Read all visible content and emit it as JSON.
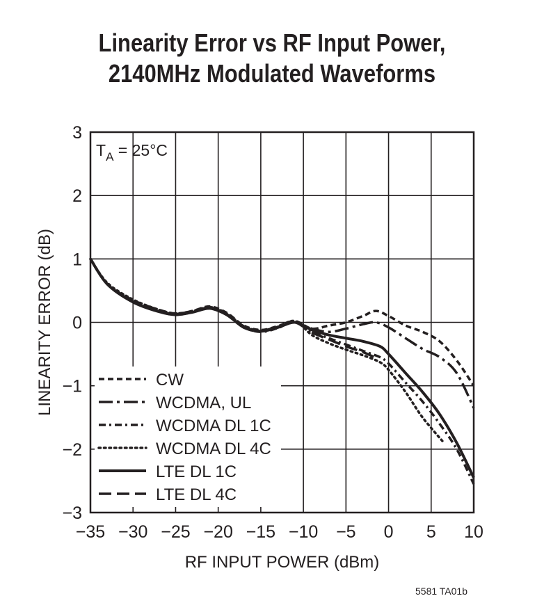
{
  "chart_data": {
    "type": "line",
    "title": "Linearity Error vs RF Input Power,",
    "subtitle": "2140MHz Modulated Waveforms",
    "xlabel": "RF INPUT POWER (dBm)",
    "ylabel": "LINEARITY ERROR (dB)",
    "xlim": [
      -35,
      10
    ],
    "ylim": [
      -3,
      3
    ],
    "x_ticks": [
      -35,
      -30,
      -25,
      -20,
      -15,
      -10,
      -5,
      0,
      5,
      10
    ],
    "x_tick_labels": [
      "−35",
      "−30",
      "−25",
      "−20",
      "−15",
      "−10",
      "−5",
      "0",
      "5",
      "10"
    ],
    "y_ticks": [
      -3,
      -2,
      -1,
      0,
      1,
      2,
      3
    ],
    "y_tick_labels": [
      "−3",
      "−2",
      "−1",
      "0",
      "1",
      "2",
      "3"
    ],
    "grid": true,
    "annotation": {
      "prefix": "T",
      "sub": "A",
      "suffix": " = 25°C"
    },
    "legend_position": "lower-left",
    "series": [
      {
        "name": "CW",
        "style": "dash",
        "x": [
          -35,
          -33,
          -30,
          -27,
          -25,
          -23,
          -21,
          -19,
          -17,
          -15,
          -13,
          -11,
          -9,
          -7,
          -5,
          -3,
          -1.5,
          0,
          2,
          4,
          6,
          8,
          10
        ],
        "y": [
          1.0,
          0.6,
          0.35,
          0.2,
          0.14,
          0.18,
          0.25,
          0.15,
          -0.05,
          -0.12,
          -0.06,
          0.02,
          -0.1,
          -0.05,
          0.0,
          0.1,
          0.18,
          0.1,
          -0.05,
          -0.15,
          -0.3,
          -0.6,
          -1.0
        ]
      },
      {
        "name": "WCDMA, UL",
        "style": "dashdot-long",
        "x": [
          -35,
          -33,
          -30,
          -27,
          -25,
          -23,
          -21,
          -19,
          -17,
          -15,
          -13,
          -11,
          -9,
          -7,
          -5,
          -3,
          -1.5,
          0,
          2,
          4,
          6,
          8,
          10
        ],
        "y": [
          1.0,
          0.6,
          0.33,
          0.18,
          0.13,
          0.17,
          0.23,
          0.13,
          -0.07,
          -0.14,
          -0.08,
          0.0,
          -0.1,
          -0.15,
          -0.1,
          -0.03,
          0.0,
          -0.08,
          -0.25,
          -0.42,
          -0.55,
          -0.8,
          -1.35
        ]
      },
      {
        "name": "WCDMA DL 1C",
        "style": "dashdot",
        "x": [
          -35,
          -33,
          -30,
          -27,
          -25,
          -23,
          -21,
          -19,
          -17,
          -15,
          -13,
          -11,
          -9,
          -7,
          -5,
          -3,
          -1,
          0,
          2,
          4,
          6,
          8,
          10
        ],
        "y": [
          1.0,
          0.6,
          0.33,
          0.18,
          0.12,
          0.16,
          0.22,
          0.12,
          -0.08,
          -0.15,
          -0.09,
          0.0,
          -0.15,
          -0.25,
          -0.35,
          -0.45,
          -0.55,
          -0.65,
          -0.95,
          -1.25,
          -1.6,
          -2.0,
          -2.55
        ]
      },
      {
        "name": "WCDMA DL 4C",
        "style": "dot",
        "x": [
          -35,
          -33,
          -30,
          -27,
          -25,
          -23,
          -21,
          -19,
          -17,
          -15,
          -13,
          -11,
          -9,
          -7,
          -5,
          -3,
          -1,
          0,
          2,
          4,
          6.5
        ],
        "y": [
          1.0,
          0.62,
          0.36,
          0.2,
          0.14,
          0.18,
          0.24,
          0.14,
          -0.06,
          -0.13,
          -0.07,
          0.02,
          -0.2,
          -0.33,
          -0.43,
          -0.52,
          -0.63,
          -0.75,
          -1.1,
          -1.5,
          -1.9
        ]
      },
      {
        "name": "LTE DL 1C",
        "style": "solid",
        "x": [
          -35,
          -33,
          -30,
          -27,
          -25,
          -23,
          -21,
          -19,
          -17,
          -15,
          -13,
          -11,
          -9,
          -7,
          -5,
          -3,
          -1,
          0,
          2,
          4,
          6,
          8,
          10
        ],
        "y": [
          1.0,
          0.6,
          0.32,
          0.17,
          0.12,
          0.16,
          0.22,
          0.12,
          -0.08,
          -0.14,
          -0.08,
          0.0,
          -0.12,
          -0.2,
          -0.25,
          -0.3,
          -0.38,
          -0.5,
          -0.8,
          -1.1,
          -1.45,
          -1.9,
          -2.45
        ]
      },
      {
        "name": "LTE DL 4C",
        "style": "longdash",
        "x": [
          -35,
          -33,
          -30,
          -27,
          -25,
          -23,
          -21,
          -19,
          -17,
          -15,
          -13,
          -11,
          -9,
          -7,
          -5,
          -3,
          -1.5
        ],
        "y": [
          1.0,
          0.6,
          0.33,
          0.18,
          0.13,
          0.17,
          0.23,
          0.13,
          -0.07,
          -0.13,
          -0.07,
          0.0,
          -0.16,
          -0.27,
          -0.38,
          -0.47,
          -0.56
        ]
      }
    ]
  },
  "figure_id": "5581 TA01b"
}
